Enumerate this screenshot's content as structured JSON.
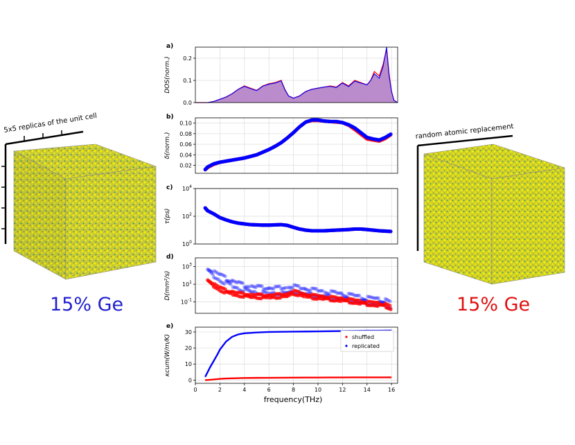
{
  "colors": {
    "shuffled": "#ff0000",
    "replicated": "#0000ff",
    "dos_fill": "#b37fc6",
    "ge_atom": "#1f8f5f",
    "si_atom": "#e6e600",
    "left_label": "#2020d0",
    "right_label": "#e01010"
  },
  "left_cube": {
    "caption": "5x5 replicas of the unit cell",
    "composition_label": "15% Ge"
  },
  "right_cube": {
    "caption": "random atomic replacement",
    "composition_label": "15% Ge"
  },
  "xaxis": {
    "label": "frequency(THz)",
    "ticks": [
      "0",
      "2",
      "4",
      "6",
      "8",
      "10",
      "12",
      "14",
      "16"
    ],
    "xlim": [
      0,
      16.5
    ]
  },
  "chart_data": [
    {
      "panel": "a)",
      "type": "area",
      "ylabel": "DOS(norm.)",
      "ylim": [
        0,
        0.25
      ],
      "yticks": [
        "0.0",
        "0.1",
        "0.2"
      ],
      "grid": true,
      "x": [
        0,
        1,
        1.5,
        2,
        2.5,
        3,
        3.5,
        4,
        4.5,
        5,
        5.5,
        6,
        6.5,
        7,
        7.3,
        7.6,
        8,
        8.5,
        9,
        9.5,
        10,
        10.5,
        11,
        11.5,
        12,
        12.5,
        13,
        13.5,
        14,
        14.3,
        14.6,
        15,
        15.3,
        15.6,
        15.8,
        16,
        16.2,
        16.5
      ],
      "series": [
        {
          "name": "shuffled",
          "values": [
            0,
            0,
            0.005,
            0.015,
            0.025,
            0.04,
            0.06,
            0.075,
            0.065,
            0.055,
            0.075,
            0.085,
            0.09,
            0.1,
            0.06,
            0.03,
            0.02,
            0.03,
            0.05,
            0.06,
            0.065,
            0.07,
            0.075,
            0.07,
            0.09,
            0.075,
            0.1,
            0.09,
            0.08,
            0.1,
            0.14,
            0.12,
            0.17,
            0.24,
            0.13,
            0.05,
            0.01,
            0
          ]
        },
        {
          "name": "replicated",
          "values": [
            0,
            0,
            0.005,
            0.015,
            0.025,
            0.04,
            0.06,
            0.073,
            0.063,
            0.054,
            0.074,
            0.083,
            0.088,
            0.098,
            0.058,
            0.03,
            0.02,
            0.03,
            0.05,
            0.06,
            0.065,
            0.07,
            0.073,
            0.068,
            0.088,
            0.072,
            0.097,
            0.088,
            0.08,
            0.1,
            0.13,
            0.11,
            0.16,
            0.25,
            0.12,
            0.05,
            0.01,
            0
          ]
        }
      ]
    },
    {
      "panel": "b)",
      "type": "scatter",
      "ylabel": "δ(norm.)",
      "ylim": [
        0.005,
        0.11
      ],
      "yticks": [
        "0.10",
        "0.08",
        "0.06",
        "0.04",
        "0.02"
      ],
      "grid": true,
      "x": [
        0.8,
        1,
        1.5,
        2,
        2.5,
        3,
        3.5,
        4,
        4.5,
        5,
        5.5,
        6,
        6.5,
        7,
        7.5,
        8,
        8.5,
        9,
        9.5,
        10,
        10.5,
        11,
        11.5,
        12,
        12.5,
        13,
        13.5,
        14,
        14.5,
        15,
        15.5,
        16
      ],
      "series": [
        {
          "name": "shuffled",
          "values": [
            0.012,
            0.016,
            0.022,
            0.026,
            0.028,
            0.03,
            0.032,
            0.034,
            0.037,
            0.04,
            0.045,
            0.05,
            0.056,
            0.063,
            0.072,
            0.082,
            0.093,
            0.102,
            0.105,
            0.105,
            0.104,
            0.103,
            0.102,
            0.101,
            0.096,
            0.088,
            0.079,
            0.07,
            0.068,
            0.066,
            0.071,
            0.079
          ]
        },
        {
          "name": "replicated",
          "values": [
            0.012,
            0.017,
            0.023,
            0.026,
            0.028,
            0.03,
            0.032,
            0.034,
            0.037,
            0.04,
            0.045,
            0.05,
            0.056,
            0.063,
            0.072,
            0.082,
            0.093,
            0.102,
            0.106,
            0.106,
            0.104,
            0.103,
            0.103,
            0.101,
            0.097,
            0.091,
            0.082,
            0.073,
            0.07,
            0.068,
            0.073,
            0.08
          ]
        }
      ]
    },
    {
      "panel": "c)",
      "type": "scatter",
      "ylabel": "τ(ps)",
      "ylim_log10": [
        0,
        4
      ],
      "yticks": [
        "10^4",
        "10^2",
        "10^0"
      ],
      "x": [
        0.8,
        1,
        1.5,
        2,
        2.5,
        3,
        3.5,
        4,
        4.5,
        5,
        5.5,
        6,
        6.5,
        7,
        7.5,
        8,
        8.5,
        9,
        9.5,
        10,
        10.5,
        11,
        11.5,
        12,
        12.5,
        13,
        13.5,
        14,
        14.5,
        15,
        15.5,
        16
      ],
      "series": [
        {
          "name": "shuffled",
          "values": [
            400,
            250,
            150,
            80,
            55,
            40,
            32,
            28,
            25,
            24,
            23,
            23,
            24,
            25,
            22,
            16,
            12,
            10,
            9,
            9,
            9,
            9.5,
            10,
            10.5,
            11,
            12,
            12,
            11,
            10,
            9,
            8.5,
            8
          ]
        },
        {
          "name": "replicated",
          "values": [
            400,
            250,
            150,
            80,
            55,
            40,
            32,
            28,
            25,
            24,
            23,
            23,
            24,
            25,
            22,
            16,
            12,
            10,
            9,
            9,
            9,
            9.5,
            10,
            10.5,
            11,
            12,
            12,
            11,
            10,
            9,
            8.5,
            8
          ]
        }
      ]
    },
    {
      "panel": "d)",
      "type": "scatter",
      "ylabel": "D(mm²/s)",
      "ylim_log10": [
        -2.3,
        4
      ],
      "yticks": [
        "10^3",
        "10^1",
        "10^-1"
      ],
      "x": [
        1,
        1.5,
        2,
        2.5,
        3,
        3.5,
        4,
        4.5,
        5,
        5.5,
        6,
        6.5,
        7,
        7.5,
        8,
        8.5,
        9,
        9.5,
        10,
        10.5,
        11,
        11.5,
        12,
        12.5,
        13,
        13.5,
        14,
        14.5,
        15,
        15.5,
        16
      ],
      "series": [
        {
          "name": "shuffled",
          "values": [
            30,
            8,
            3,
            1.5,
            1,
            0.7,
            0.6,
            0.5,
            0.45,
            0.4,
            0.4,
            0.45,
            0.5,
            0.6,
            1.2,
            0.8,
            0.5,
            0.4,
            0.35,
            0.3,
            0.25,
            0.2,
            0.17,
            0.14,
            0.11,
            0.09,
            0.07,
            0.06,
            0.05,
            0.04,
            0.02
          ]
        },
        {
          "name": "replicated",
          "values": [
            500,
            150,
            60,
            25,
            12,
            7,
            4,
            3,
            2.5,
            2,
            1.8,
            1.8,
            2,
            2.2,
            3,
            2,
            1.5,
            1.2,
            1,
            0.8,
            0.6,
            0.5,
            0.4,
            0.3,
            0.25,
            0.2,
            0.15,
            0.12,
            0.1,
            0.08,
            0.04
          ]
        }
      ]
    },
    {
      "panel": "e)",
      "type": "line",
      "ylabel": "κcum(W/m/K)",
      "ylim": [
        -2,
        33
      ],
      "yticks": [
        "30",
        "20",
        "10",
        "0"
      ],
      "grid": true,
      "legend": {
        "location": "top-right",
        "entries": [
          "shuffled",
          "replicated"
        ]
      },
      "x": [
        0.8,
        1,
        1.2,
        1.5,
        1.8,
        2,
        2.5,
        3,
        3.5,
        4,
        5,
        6,
        7,
        8,
        9,
        10,
        11,
        12,
        13,
        14,
        15,
        16
      ],
      "series": [
        {
          "name": "shuffled",
          "values": [
            0,
            0.1,
            0.2,
            0.4,
            0.6,
            0.8,
            1.0,
            1.1,
            1.2,
            1.3,
            1.4,
            1.45,
            1.5,
            1.55,
            1.6,
            1.6,
            1.65,
            1.65,
            1.7,
            1.7,
            1.7,
            1.7
          ]
        },
        {
          "name": "replicated",
          "values": [
            2,
            5,
            8,
            12,
            16,
            19,
            24,
            27,
            28.5,
            29.2,
            29.7,
            30,
            30.1,
            30.2,
            30.3,
            30.4,
            30.5,
            30.6,
            30.7,
            30.8,
            30.8,
            30.9
          ]
        }
      ]
    }
  ]
}
